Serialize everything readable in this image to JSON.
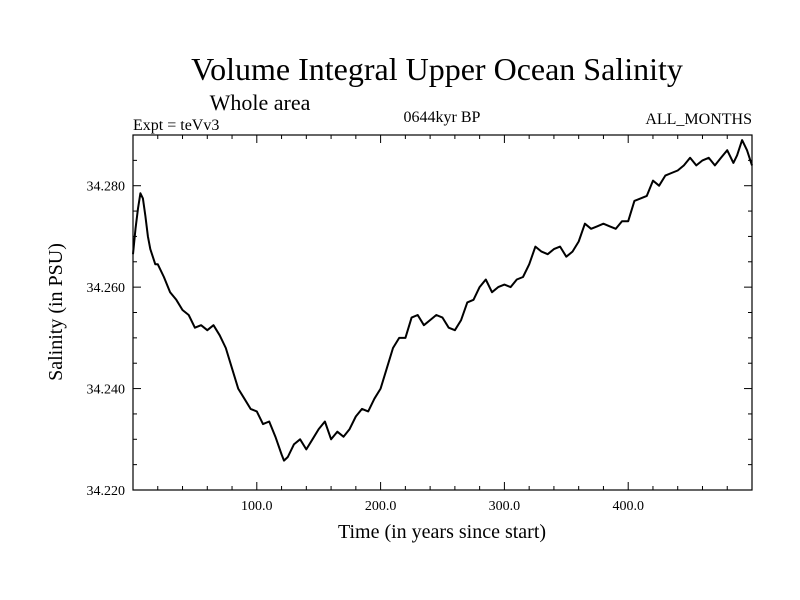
{
  "chart_data": {
    "type": "line",
    "title": "Volume Integral Upper Ocean Salinity",
    "subtitle": "Whole area",
    "left_header": "Expt = teVv3",
    "center_header": "0644kyr BP",
    "right_header": "ALL_MONTHS",
    "xlabel": "Time (in years since start)",
    "ylabel": "Salinity (in PSU)",
    "xlim": [
      0,
      500
    ],
    "ylim": [
      34.22,
      34.29
    ],
    "x_ticks": [
      100,
      200,
      300,
      400
    ],
    "x_tick_labels": [
      "100.0",
      "200.0",
      "300.0",
      "400.0"
    ],
    "y_ticks": [
      34.22,
      34.24,
      34.26,
      34.28
    ],
    "y_tick_labels": [
      "34.220",
      "34.240",
      "34.260",
      "34.280"
    ],
    "series": [
      {
        "name": "Salinity",
        "x": [
          0,
          2,
          4,
          6,
          8,
          10,
          12,
          14,
          16,
          18,
          20,
          25,
          30,
          35,
          40,
          45,
          50,
          55,
          60,
          65,
          70,
          75,
          80,
          85,
          90,
          95,
          100,
          105,
          110,
          115,
          120,
          122,
          125,
          130,
          135,
          140,
          145,
          150,
          155,
          160,
          165,
          170,
          175,
          180,
          185,
          190,
          195,
          200,
          205,
          210,
          215,
          220,
          225,
          230,
          235,
          240,
          245,
          250,
          255,
          260,
          265,
          270,
          275,
          280,
          285,
          290,
          295,
          300,
          305,
          310,
          315,
          320,
          325,
          330,
          335,
          340,
          345,
          350,
          355,
          360,
          365,
          370,
          375,
          380,
          385,
          390,
          395,
          400,
          405,
          410,
          415,
          420,
          425,
          430,
          435,
          440,
          445,
          450,
          455,
          460,
          465,
          470,
          475,
          480,
          485,
          488,
          492,
          496,
          500
        ],
        "y": [
          34.2665,
          34.2715,
          34.2755,
          34.2785,
          34.2775,
          34.274,
          34.27,
          34.2675,
          34.266,
          34.2645,
          34.2645,
          34.262,
          34.259,
          34.2575,
          34.2555,
          34.2545,
          34.252,
          34.2525,
          34.2515,
          34.2525,
          34.2505,
          34.248,
          34.244,
          34.24,
          34.238,
          34.236,
          34.2355,
          34.233,
          34.2335,
          34.2305,
          34.227,
          34.2258,
          34.2265,
          34.229,
          34.23,
          34.228,
          34.23,
          34.232,
          34.2335,
          34.23,
          34.2315,
          34.2305,
          34.232,
          34.2345,
          34.236,
          34.2355,
          34.238,
          34.24,
          34.244,
          34.248,
          34.25,
          34.25,
          34.254,
          34.2545,
          34.2525,
          34.2535,
          34.2545,
          34.254,
          34.252,
          34.2515,
          34.2535,
          34.257,
          34.2575,
          34.26,
          34.2615,
          34.259,
          34.26,
          34.2605,
          34.26,
          34.2615,
          34.262,
          34.2645,
          34.268,
          34.267,
          34.2665,
          34.2675,
          34.268,
          34.266,
          34.267,
          34.269,
          34.2725,
          34.2715,
          34.272,
          34.2725,
          34.272,
          34.2715,
          34.273,
          34.273,
          34.277,
          34.2775,
          34.278,
          34.281,
          34.28,
          34.282,
          34.2825,
          34.283,
          34.284,
          34.2855,
          34.284,
          34.285,
          34.2855,
          34.284,
          34.2855,
          34.287,
          34.2845,
          34.286,
          34.289,
          34.287,
          34.284
        ]
      }
    ]
  },
  "colors": {
    "line": "#000000",
    "background": "#ffffff",
    "axis": "#000000"
  }
}
